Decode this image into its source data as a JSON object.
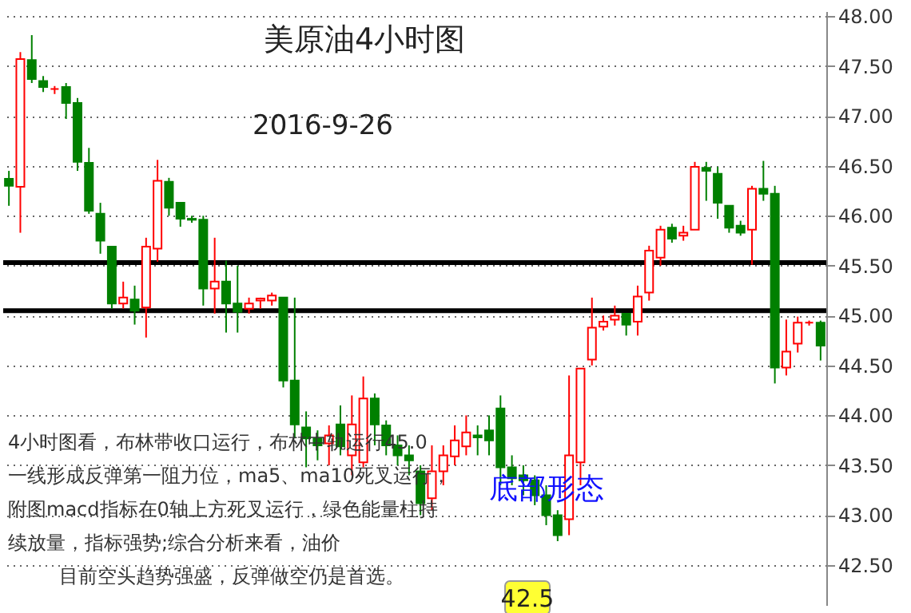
{
  "chart_data": {
    "type": "candlestick",
    "title": "美原油4小时图",
    "subtitle": "2016-9-26",
    "categories": [
      null,
      null,
      null,
      null,
      null,
      null,
      null,
      null,
      null,
      null,
      null,
      null,
      null,
      null,
      null,
      null,
      null,
      null,
      null,
      null,
      null,
      null,
      null,
      null,
      null,
      null,
      null,
      null,
      null,
      null,
      null,
      null,
      null,
      null,
      null,
      null,
      null,
      null,
      null,
      null,
      null,
      null,
      null,
      null,
      null,
      null,
      null,
      null,
      null,
      null,
      null,
      null,
      null,
      null,
      null,
      null,
      null,
      null,
      null,
      null,
      null,
      null,
      null,
      null,
      null,
      null,
      null,
      null,
      null,
      null,
      null,
      null
    ],
    "ohlc": [
      [
        46.37,
        46.45,
        46.1,
        46.3
      ],
      [
        46.29,
        47.64,
        45.83,
        47.57
      ],
      [
        47.56,
        47.81,
        47.33,
        47.37
      ],
      [
        47.35,
        47.4,
        47.24,
        47.29
      ],
      [
        47.27,
        47.3,
        47.22,
        47.27
      ],
      [
        47.29,
        47.33,
        46.97,
        47.13
      ],
      [
        47.13,
        47.18,
        46.45,
        46.54
      ],
      [
        46.53,
        46.68,
        46.02,
        46.05
      ],
      [
        46.02,
        46.13,
        45.62,
        45.75
      ],
      [
        45.69,
        45.69,
        45.07,
        45.12
      ],
      [
        45.12,
        45.34,
        45.07,
        45.18
      ],
      [
        45.16,
        45.3,
        44.91,
        45.05
      ],
      [
        45.08,
        45.78,
        44.78,
        45.69
      ],
      [
        45.67,
        46.56,
        45.54,
        46.35
      ],
      [
        46.34,
        46.38,
        46.0,
        46.08
      ],
      [
        46.13,
        46.13,
        45.89,
        45.97
      ],
      [
        45.97,
        46.0,
        45.93,
        45.96
      ],
      [
        45.96,
        46.0,
        45.1,
        45.27
      ],
      [
        45.27,
        45.78,
        45.02,
        45.34
      ],
      [
        45.34,
        45.55,
        44.83,
        45.12
      ],
      [
        45.12,
        45.5,
        44.83,
        45.04
      ],
      [
        45.07,
        45.18,
        45.02,
        45.12
      ],
      [
        45.15,
        45.18,
        45.07,
        45.17
      ],
      [
        45.15,
        45.23,
        45.1,
        45.2
      ],
      [
        45.18,
        45.18,
        44.28,
        44.35
      ],
      [
        44.35,
        45.18,
        43.77,
        43.91
      ],
      [
        43.88,
        44.04,
        43.48,
        43.77
      ],
      [
        43.77,
        43.85,
        43.55,
        43.7
      ],
      [
        43.72,
        43.9,
        43.5,
        43.8
      ],
      [
        43.91,
        44.1,
        43.6,
        43.69
      ],
      [
        43.6,
        44.2,
        43.4,
        43.91
      ],
      [
        43.53,
        44.39,
        43.48,
        44.17
      ],
      [
        44.17,
        44.22,
        43.7,
        43.91
      ],
      [
        43.9,
        43.95,
        43.6,
        43.7
      ],
      [
        43.7,
        43.8,
        43.5,
        43.6
      ],
      [
        43.6,
        43.7,
        43.4,
        43.55
      ],
      [
        43.44,
        43.5,
        43.0,
        43.12
      ],
      [
        43.17,
        43.7,
        43.05,
        43.44
      ],
      [
        43.44,
        43.7,
        43.3,
        43.6
      ],
      [
        43.59,
        43.9,
        43.5,
        43.75
      ],
      [
        43.69,
        44.0,
        43.6,
        43.83
      ],
      [
        43.8,
        43.9,
        43.6,
        43.78
      ],
      [
        43.85,
        44.0,
        43.6,
        43.75
      ],
      [
        44.07,
        44.2,
        43.3,
        43.48
      ],
      [
        43.48,
        43.6,
        43.3,
        43.37
      ],
      [
        43.4,
        43.5,
        43.2,
        43.35
      ],
      [
        43.35,
        43.4,
        43.1,
        43.2
      ],
      [
        43.2,
        43.3,
        42.9,
        43.0
      ],
      [
        43.0,
        43.05,
        42.74,
        42.8
      ],
      [
        42.96,
        44.4,
        42.8,
        43.6
      ],
      [
        43.53,
        44.47,
        43.3,
        44.47
      ],
      [
        44.56,
        45.18,
        44.5,
        44.88
      ],
      [
        44.89,
        45.0,
        44.85,
        44.94
      ],
      [
        44.96,
        45.1,
        44.9,
        45.0
      ],
      [
        45.02,
        45.02,
        44.8,
        44.91
      ],
      [
        44.94,
        45.3,
        44.8,
        45.19
      ],
      [
        45.23,
        45.7,
        45.15,
        45.65
      ],
      [
        45.58,
        45.9,
        45.5,
        45.86
      ],
      [
        45.88,
        45.92,
        45.73,
        45.77
      ],
      [
        45.8,
        45.9,
        45.75,
        45.83
      ],
      [
        45.86,
        46.54,
        45.86,
        46.49
      ],
      [
        46.48,
        46.54,
        46.15,
        46.45
      ],
      [
        46.42,
        46.49,
        45.97,
        46.13
      ],
      [
        46.1,
        46.1,
        45.83,
        45.88
      ],
      [
        45.9,
        45.95,
        45.8,
        45.83
      ],
      [
        45.86,
        46.3,
        45.51,
        46.27
      ],
      [
        46.27,
        46.55,
        46.15,
        46.22
      ],
      [
        46.22,
        46.3,
        44.32,
        44.48
      ],
      [
        44.48,
        44.96,
        44.4,
        44.64
      ],
      [
        44.72,
        44.99,
        44.63,
        44.93
      ],
      [
        44.93,
        44.95,
        44.9,
        44.93
      ],
      [
        44.93,
        44.95,
        44.55,
        44.7
      ]
    ],
    "ylim": [
      42.1,
      48.05
    ],
    "yticks": [
      {
        "value": 42.5,
        "label": "42.50"
      },
      {
        "value": 43,
        "label": "43.00"
      },
      {
        "value": 43.5,
        "label": "43.50"
      },
      {
        "value": 44,
        "label": "44.00"
      },
      {
        "value": 44.5,
        "label": "44.50"
      },
      {
        "value": 45,
        "label": "45.00"
      },
      {
        "value": 45.5,
        "label": "45.50"
      },
      {
        "value": 46,
        "label": "46.00"
      },
      {
        "value": 46.5,
        "label": "46.50"
      },
      {
        "value": 47,
        "label": "47.00"
      },
      {
        "value": 47.5,
        "label": "47.50"
      },
      {
        "value": 48,
        "label": "48.00"
      }
    ],
    "grid": "y",
    "tick_labels": "y",
    "ref_lines": [
      {
        "axis": "y",
        "value": 45.53,
        "color": "#000000"
      },
      {
        "axis": "y",
        "value": 45.05,
        "color": "#000000"
      }
    ],
    "annotations": [
      "4小时图看，布林带收口运行，布林中轨运行45.0",
      "一线形成反弹第一阻力位，ma5、ma10死叉运行，",
      "附图macd指标在0轴上方死叉运行，绿色能量柱持",
      "续放量，指标强势;综合分析来看，油价",
      "目前空头趋势强盛，反弹做空仍是首选。",
      "底部形态",
      "42.5"
    ]
  }
}
